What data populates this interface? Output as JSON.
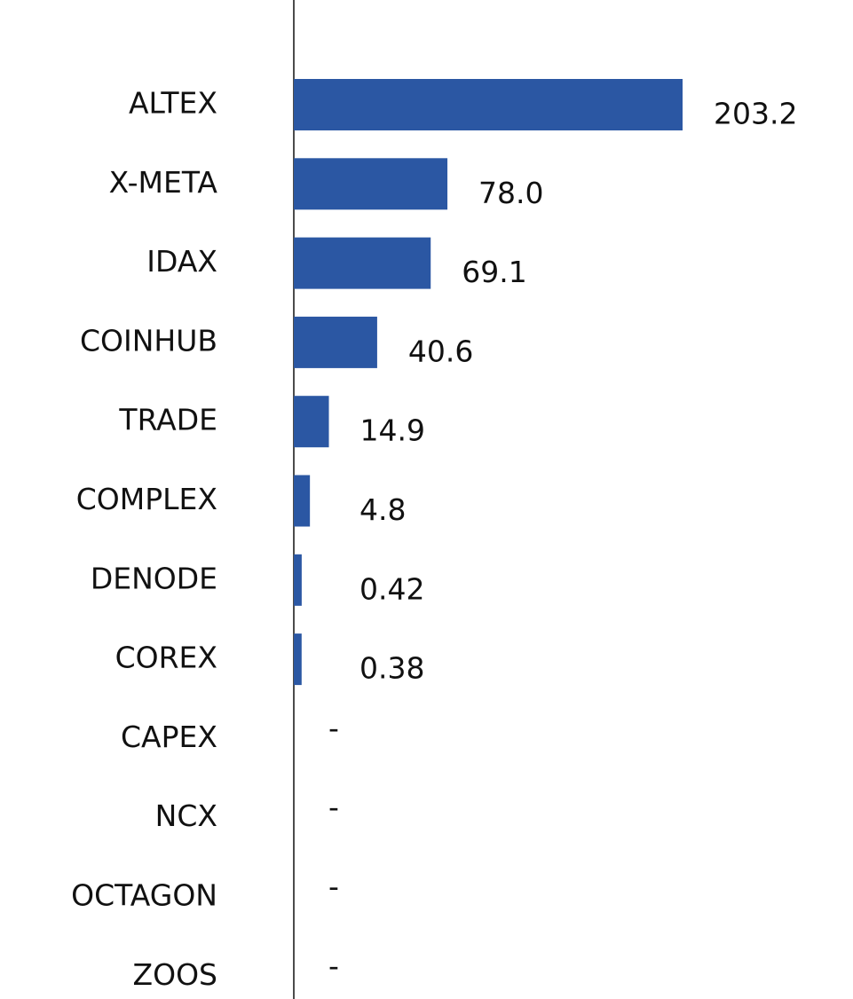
{
  "chart_data": {
    "type": "bar",
    "orientation": "horizontal",
    "categories": [
      "ALTEX",
      "X-META",
      "IDAX",
      "COINHUB",
      "TRADE",
      "COMPLEX",
      "DENODE",
      "COREX",
      "CAPEX",
      "NCX",
      "OCTAGON",
      "ZOOS"
    ],
    "values": [
      203.2,
      78.0,
      69.1,
      40.6,
      14.9,
      4.8,
      0.42,
      0.38,
      null,
      null,
      null,
      null
    ],
    "value_labels": [
      "203.2",
      "78.0",
      "69.1",
      "40.6",
      "14.9",
      "4.8",
      "0.42",
      "0.38",
      "-",
      "-",
      "-",
      "-"
    ],
    "color": "#2b57a3"
  }
}
